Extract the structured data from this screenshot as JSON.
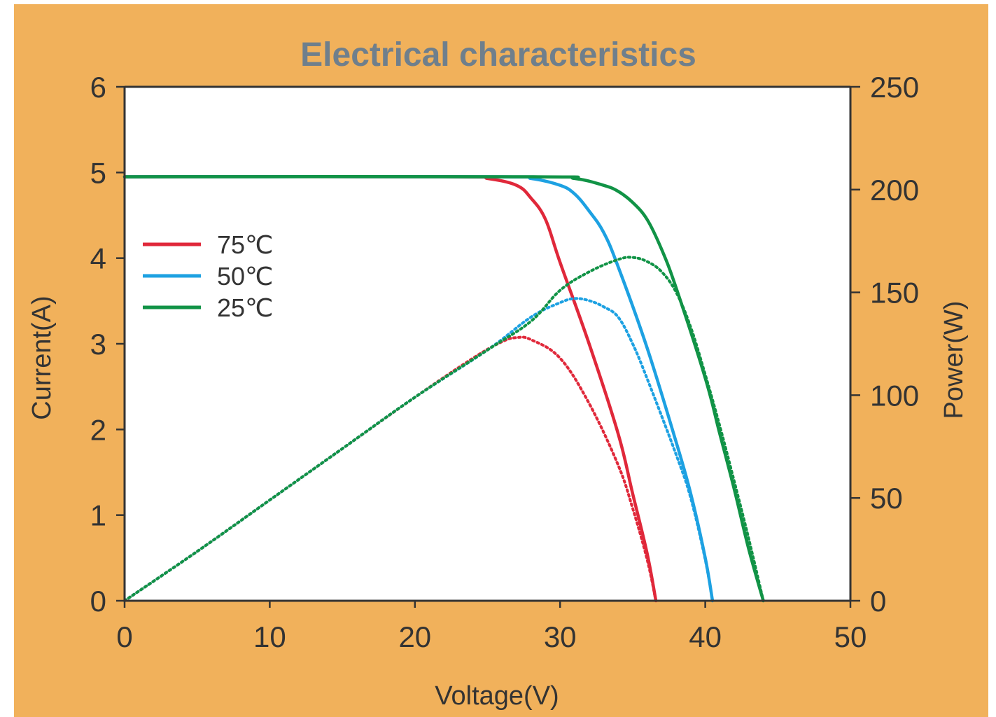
{
  "colors": {
    "background": "#f1b15b",
    "plot_area": "#ffffff",
    "axis": "#333333",
    "title": "#6f7f8c"
  },
  "chart_data": {
    "type": "line",
    "title": "Electrical characteristics",
    "xlabel": "Voltage(V)",
    "ylabel": "Current(A)",
    "y2label": "Power(W)",
    "xlim": [
      0,
      50
    ],
    "ylim": [
      0,
      6
    ],
    "y2lim": [
      0,
      250
    ],
    "xticks": [
      0,
      10,
      20,
      30,
      40,
      50
    ],
    "yticks": [
      0,
      1,
      2,
      3,
      4,
      5,
      6
    ],
    "y2ticks": [
      0,
      50,
      100,
      150,
      200,
      250
    ],
    "grid": false,
    "legend_position": "left",
    "series": [
      {
        "name": "75℃",
        "color": "#e0283a",
        "current": {
          "x": [
            0,
            23,
            25,
            27,
            28,
            29,
            30,
            32,
            34,
            35,
            36,
            36.6
          ],
          "y": [
            4.95,
            4.95,
            4.93,
            4.85,
            4.7,
            4.45,
            3.95,
            3.0,
            1.95,
            1.25,
            0.55,
            0
          ]
        },
        "power": {
          "x": [
            0,
            5,
            10,
            15,
            20,
            24,
            26,
            27,
            28,
            30,
            32,
            34,
            35,
            36,
            36.6
          ],
          "y": [
            0,
            24,
            49,
            74,
            99,
            118,
            126,
            128,
            127,
            118,
            96,
            66,
            45,
            20,
            0
          ]
        }
      },
      {
        "name": "50℃",
        "color": "#1da1e2",
        "current": {
          "x": [
            0,
            26,
            28,
            30,
            31,
            32,
            33,
            34,
            36,
            38,
            39,
            40,
            40.5
          ],
          "y": [
            4.95,
            4.95,
            4.93,
            4.85,
            4.75,
            4.55,
            4.3,
            3.9,
            2.95,
            1.85,
            1.25,
            0.5,
            0
          ]
        },
        "power": {
          "x": [
            0,
            5,
            10,
            15,
            20,
            25,
            28,
            30,
            31,
            32,
            33,
            34,
            35,
            36,
            38,
            39,
            40,
            40.5
          ],
          "y": [
            0,
            24,
            49,
            74,
            99,
            122,
            138,
            145,
            147,
            146,
            143,
            138,
            125,
            108,
            71,
            50,
            20,
            0
          ]
        }
      },
      {
        "name": "25℃",
        "color": "#119346",
        "current": {
          "x": [
            0,
            28,
            31,
            33,
            34,
            35,
            36,
            37,
            38,
            40,
            41,
            42,
            43,
            44
          ],
          "y": [
            4.95,
            4.95,
            4.93,
            4.85,
            4.78,
            4.65,
            4.45,
            4.1,
            3.65,
            2.6,
            1.95,
            1.3,
            0.6,
            0
          ]
        },
        "power": {
          "x": [
            0,
            5,
            10,
            15,
            20,
            25,
            28,
            30,
            32,
            34,
            35,
            36,
            37,
            38,
            39,
            40,
            41,
            42,
            43,
            44
          ],
          "y": [
            0,
            24,
            49,
            74,
            99,
            122,
            136,
            151,
            160,
            166,
            167,
            165,
            160,
            150,
            133,
            110,
            85,
            58,
            30,
            0
          ]
        }
      }
    ]
  }
}
